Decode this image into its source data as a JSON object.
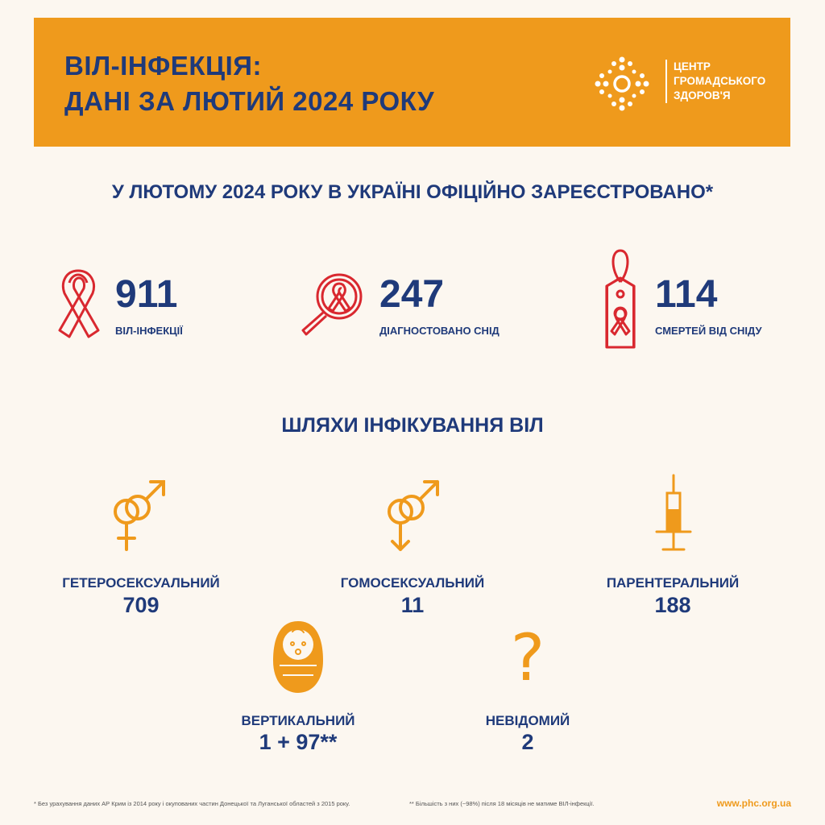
{
  "header": {
    "title_line1": "ВІЛ-ІНФЕКЦІЯ:",
    "title_line2": "ДАНІ ЗА ЛЮТИЙ 2024 РОКУ",
    "logo_line1": "ЦЕНТР",
    "logo_line2": "ГРОМАДСЬКОГО",
    "logo_line3": "ЗДОРОВ'Я"
  },
  "headline": {
    "prefix": "У ",
    "highlight": "ЛЮТОМУ 2024 РОКУ",
    "suffix": " В УКРАЇНІ ОФІЦІЙНО ЗАРЕЄСТРОВАНО*"
  },
  "stats": [
    {
      "value": "911",
      "label": "ВІЛ-ІНФЕКЦІЇ",
      "icon": "red-ribbon-icon"
    },
    {
      "value": "247",
      "label": "ДІАГНОСТОВАНО СНІД",
      "icon": "magnifier-ribbon-icon"
    },
    {
      "value": "114",
      "label": "СМЕРТЕЙ ВІД СНІДУ",
      "icon": "tag-ribbon-icon"
    }
  ],
  "routes_title": "ШЛЯХИ ІНФІКУВАННЯ ВІЛ",
  "routes": [
    {
      "label": "ГЕТЕРОСЕКСУАЛЬНИЙ",
      "value": "709",
      "icon": "heterosexual-icon"
    },
    {
      "label": "ГОМОСЕКСУАЛЬНИЙ",
      "value": "11",
      "icon": "homosexual-icon"
    },
    {
      "label": "ПАРЕНТЕРАЛЬНИЙ",
      "value": "188",
      "icon": "syringe-icon"
    },
    {
      "label": "ВЕРТИКАЛЬНИЙ",
      "value": "1 + 97**",
      "icon": "baby-icon"
    },
    {
      "label": "НЕВІДОМИЙ",
      "value": "2",
      "icon": "question-icon"
    }
  ],
  "footer": {
    "note1": "* Без урахування даних АР Крим із 2014 року і окупованих частин Донецької та Луганської областей з 2015 року.",
    "note2": "** Більшість з них (~98%) після 18 місяців не матиме ВІЛ-інфекції.",
    "website": "www.phc.org.ua"
  },
  "colors": {
    "orange": "#ef9a1c",
    "navy": "#1f3a7a",
    "red": "#d9282f",
    "background": "#fcf7f0"
  }
}
